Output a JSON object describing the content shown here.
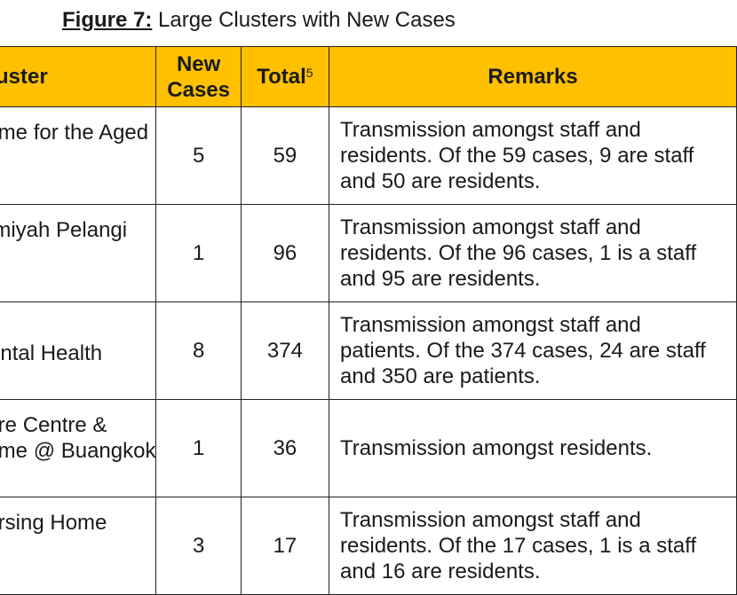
{
  "caption": {
    "label": "Figure 7:",
    "text": "Large Clusters with New Cases"
  },
  "table": {
    "headers": {
      "cluster": "Cluster",
      "new_line1": "New",
      "new_line2": "Cases",
      "total": "Total",
      "total_footnote": "5",
      "remarks": "Remarks"
    },
    "rows": [
      {
        "cluster_lines": [
          "Home for the Aged"
        ],
        "new_cases": "5",
        "total": "59",
        "remarks_lines": [
          "Transmission amongst staff and",
          "residents. Of the 59 cases, 9 are staff",
          "and 50 are residents."
        ]
      },
      {
        "cluster_lines": [
          "Jamiyah Pelangi"
        ],
        "new_cases": "1",
        "total": "96",
        "remarks_lines": [
          "Transmission amongst staff and",
          "residents. Of the 96 cases, 1 is a staff",
          "and 95 are residents."
        ]
      },
      {
        "cluster_lines": [
          "",
          "Mental Health"
        ],
        "new_cases": "8",
        "total": "374",
        "remarks_lines": [
          "Transmission amongst staff and",
          "patients. Of the 374 cases, 24 are staff",
          "and 350 are patients."
        ]
      },
      {
        "cluster_lines": [
          "Care Centre &",
          "Home @ Buangkok"
        ],
        "new_cases": "1",
        "total": "36",
        "remarks_lines": [
          "Transmission amongst residents."
        ]
      },
      {
        "cluster_lines": [
          "Nursing Home"
        ],
        "new_cases": "3",
        "total": "17",
        "remarks_lines": [
          "Transmission amongst staff and",
          "residents. Of the 17 cases, 1 is a staff",
          "and 16 are residents."
        ]
      }
    ]
  },
  "colors": {
    "header_background": "#ffc000",
    "border": "#222222",
    "text": "#1a1a1a"
  }
}
